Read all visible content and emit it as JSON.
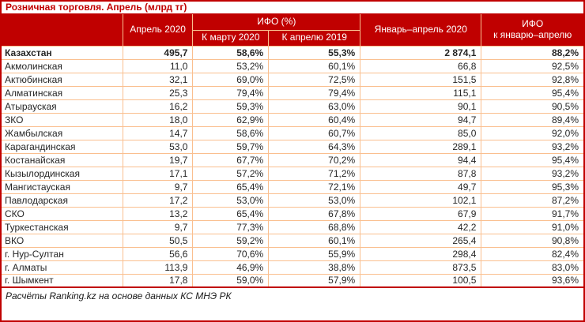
{
  "title": "Розничная торговля. Апрель (млрд тг)",
  "header": {
    "region": "",
    "april_2020": "Апрель 2020",
    "ifo_group": "ИФО (%)",
    "to_march_2020": "К марту 2020",
    "to_april_2019": "К апрелю 2019",
    "jan_apr_2020": "Январь–апрель 2020",
    "ifo_cum_line1": "ИФО",
    "ifo_cum_line2": "к январю–апрелю"
  },
  "rows": [
    {
      "bold": true,
      "region": "Казахстан",
      "april_2020": "495,7",
      "ifo_to_march_2020": "58,6%",
      "ifo_to_april_2019": "55,3%",
      "jan_apr_2020": "2 874,1",
      "ifo_jan_apr": "88,2%"
    },
    {
      "bold": false,
      "region": "Акмолинская",
      "april_2020": "11,0",
      "ifo_to_march_2020": "53,2%",
      "ifo_to_april_2019": "60,1%",
      "jan_apr_2020": "66,8",
      "ifo_jan_apr": "92,5%"
    },
    {
      "bold": false,
      "region": "Актюбинская",
      "april_2020": "32,1",
      "ifo_to_march_2020": "69,0%",
      "ifo_to_april_2019": "72,5%",
      "jan_apr_2020": "151,5",
      "ifo_jan_apr": "92,8%"
    },
    {
      "bold": false,
      "region": "Алматинская",
      "april_2020": "25,3",
      "ifo_to_march_2020": "79,4%",
      "ifo_to_april_2019": "79,4%",
      "jan_apr_2020": "115,1",
      "ifo_jan_apr": "95,4%"
    },
    {
      "bold": false,
      "region": "Атырауская",
      "april_2020": "16,2",
      "ifo_to_march_2020": "59,3%",
      "ifo_to_april_2019": "63,0%",
      "jan_apr_2020": "90,1",
      "ifo_jan_apr": "90,5%"
    },
    {
      "bold": false,
      "region": "ЗКО",
      "april_2020": "18,0",
      "ifo_to_march_2020": "62,9%",
      "ifo_to_april_2019": "60,4%",
      "jan_apr_2020": "94,7",
      "ifo_jan_apr": "89,4%"
    },
    {
      "bold": false,
      "region": "Жамбылская",
      "april_2020": "14,7",
      "ifo_to_march_2020": "58,6%",
      "ifo_to_april_2019": "60,7%",
      "jan_apr_2020": "85,0",
      "ifo_jan_apr": "92,0%"
    },
    {
      "bold": false,
      "region": "Карагандинская",
      "april_2020": "53,0",
      "ifo_to_march_2020": "59,7%",
      "ifo_to_april_2019": "64,3%",
      "jan_apr_2020": "289,1",
      "ifo_jan_apr": "93,2%"
    },
    {
      "bold": false,
      "region": "Костанайская",
      "april_2020": "19,7",
      "ifo_to_march_2020": "67,7%",
      "ifo_to_april_2019": "70,2%",
      "jan_apr_2020": "94,4",
      "ifo_jan_apr": "95,4%"
    },
    {
      "bold": false,
      "region": "Кызылординская",
      "april_2020": "17,1",
      "ifo_to_march_2020": "57,2%",
      "ifo_to_april_2019": "71,2%",
      "jan_apr_2020": "87,8",
      "ifo_jan_apr": "93,2%"
    },
    {
      "bold": false,
      "region": "Мангистауская",
      "april_2020": "9,7",
      "ifo_to_march_2020": "65,4%",
      "ifo_to_april_2019": "72,1%",
      "jan_apr_2020": "49,7",
      "ifo_jan_apr": "95,3%"
    },
    {
      "bold": false,
      "region": "Павлодарская",
      "april_2020": "17,2",
      "ifo_to_march_2020": "53,0%",
      "ifo_to_april_2019": "53,0%",
      "jan_apr_2020": "102,1",
      "ifo_jan_apr": "87,2%"
    },
    {
      "bold": false,
      "region": "СКО",
      "april_2020": "13,2",
      "ifo_to_march_2020": "65,4%",
      "ifo_to_april_2019": "67,8%",
      "jan_apr_2020": "67,9",
      "ifo_jan_apr": "91,7%"
    },
    {
      "bold": false,
      "region": "Туркестанская",
      "april_2020": "9,7",
      "ifo_to_march_2020": "77,3%",
      "ifo_to_april_2019": "68,8%",
      "jan_apr_2020": "42,2",
      "ifo_jan_apr": "91,0%"
    },
    {
      "bold": false,
      "region": "ВКО",
      "april_2020": "50,5",
      "ifo_to_march_2020": "59,2%",
      "ifo_to_april_2019": "60,1%",
      "jan_apr_2020": "265,4",
      "ifo_jan_apr": "90,8%"
    },
    {
      "bold": false,
      "region": "г. Нур-Султан",
      "april_2020": "56,6",
      "ifo_to_march_2020": "70,6%",
      "ifo_to_april_2019": "55,9%",
      "jan_apr_2020": "298,4",
      "ifo_jan_apr": "82,4%"
    },
    {
      "bold": false,
      "region": "г. Алматы",
      "april_2020": "113,9",
      "ifo_to_march_2020": "46,9%",
      "ifo_to_april_2019": "38,8%",
      "jan_apr_2020": "873,5",
      "ifo_jan_apr": "83,0%"
    },
    {
      "bold": false,
      "region": "г. Шымкент",
      "april_2020": "17,8",
      "ifo_to_march_2020": "59,0%",
      "ifo_to_april_2019": "57,9%",
      "jan_apr_2020": "100,5",
      "ifo_jan_apr": "93,6%"
    }
  ],
  "footer": "Расчёты Ranking.kz на основе данных КС МНЭ РК",
  "colors": {
    "accent_red": "#C00000",
    "grid_peach": "#FABF8F",
    "header_text": "#FFFFFF",
    "body_text": "#262626"
  },
  "chart_data": {
    "type": "table",
    "title": "Розничная торговля. Апрель (млрд тг)",
    "columns": [
      "",
      "Апрель 2020",
      "ИФО (%) К марту 2020",
      "ИФО (%) К апрелю 2019",
      "Январь–апрель 2020",
      "ИФО к январю–апрелю"
    ],
    "rows": [
      [
        "Казахстан",
        "495,7",
        "58,6%",
        "55,3%",
        "2 874,1",
        "88,2%"
      ],
      [
        "Акмолинская",
        "11,0",
        "53,2%",
        "60,1%",
        "66,8",
        "92,5%"
      ],
      [
        "Актюбинская",
        "32,1",
        "69,0%",
        "72,5%",
        "151,5",
        "92,8%"
      ],
      [
        "Алматинская",
        "25,3",
        "79,4%",
        "79,4%",
        "115,1",
        "95,4%"
      ],
      [
        "Атырауская",
        "16,2",
        "59,3%",
        "63,0%",
        "90,1",
        "90,5%"
      ],
      [
        "ЗКО",
        "18,0",
        "62,9%",
        "60,4%",
        "94,7",
        "89,4%"
      ],
      [
        "Жамбылская",
        "14,7",
        "58,6%",
        "60,7%",
        "85,0",
        "92,0%"
      ],
      [
        "Карагандинская",
        "53,0",
        "59,7%",
        "64,3%",
        "289,1",
        "93,2%"
      ],
      [
        "Костанайская",
        "19,7",
        "67,7%",
        "70,2%",
        "94,4",
        "95,4%"
      ],
      [
        "Кызылординская",
        "17,1",
        "57,2%",
        "71,2%",
        "87,8",
        "93,2%"
      ],
      [
        "Мангистауская",
        "9,7",
        "65,4%",
        "72,1%",
        "49,7",
        "95,3%"
      ],
      [
        "Павлодарская",
        "17,2",
        "53,0%",
        "53,0%",
        "102,1",
        "87,2%"
      ],
      [
        "СКО",
        "13,2",
        "65,4%",
        "67,8%",
        "67,9",
        "91,7%"
      ],
      [
        "Туркестанская",
        "9,7",
        "77,3%",
        "68,8%",
        "42,2",
        "91,0%"
      ],
      [
        "ВКО",
        "50,5",
        "59,2%",
        "60,1%",
        "265,4",
        "90,8%"
      ],
      [
        "г. Нур-Султан",
        "56,6",
        "70,6%",
        "55,9%",
        "298,4",
        "82,4%"
      ],
      [
        "г. Алматы",
        "113,9",
        "46,9%",
        "38,8%",
        "873,5",
        "83,0%"
      ],
      [
        "г. Шымкент",
        "17,8",
        "59,0%",
        "57,9%",
        "100,5",
        "93,6%"
      ]
    ],
    "footer": "Расчёты Ranking.kz на основе данных КС МНЭ РК"
  }
}
